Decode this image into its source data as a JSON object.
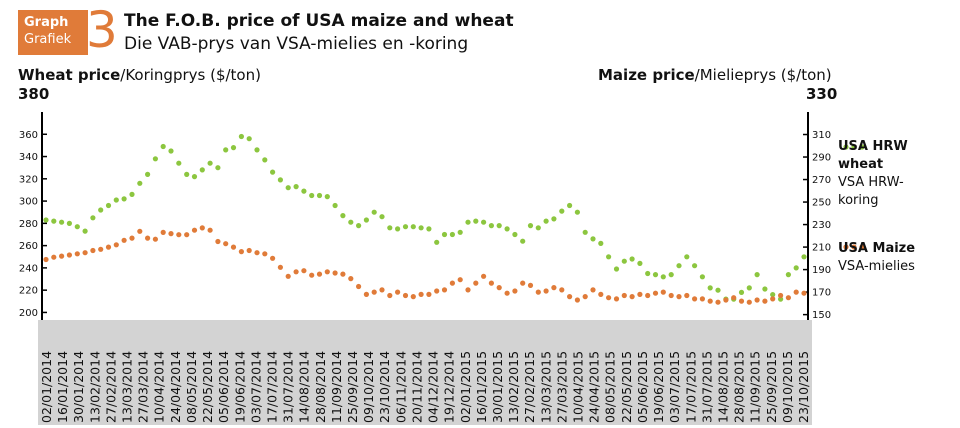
{
  "header": {
    "badge_line1": "Graph",
    "badge_line2": "Grafiek",
    "number": "3",
    "title_en": "The F.O.B. price of USA maize and wheat",
    "title_af": "Die VAB-prys van VSA-mielies en -koring"
  },
  "left_axis": {
    "label_bold": "Wheat price",
    "label_rest": "/Koringprys ($/ton)",
    "top_value": "380"
  },
  "right_axis": {
    "label_bold": "Maize price",
    "label_rest": "/Mielieprys ($/ton)",
    "top_value": "330"
  },
  "legend": {
    "wheat_line1": "USA HRW",
    "wheat_line2": "wheat",
    "wheat_af1": "VSA HRW-",
    "wheat_af2": "koring",
    "maize_line1": "USA Maize",
    "maize_af": "VSA-mielies"
  },
  "colors": {
    "wheat": "#8cc63f",
    "maize": "#e07b39",
    "accent": "#e07b39",
    "date_band": "#d3d3d3"
  },
  "chart_data": {
    "type": "scatter",
    "left_ylim": [
      195,
      380
    ],
    "left_ticks": [
      200,
      220,
      240,
      260,
      280,
      300,
      320,
      340,
      360
    ],
    "right_ylim": [
      147,
      330
    ],
    "right_ticks": [
      150,
      170,
      190,
      210,
      230,
      250,
      270,
      290,
      310
    ],
    "date_labels": [
      "02/01/2014",
      "16/01/2014",
      "30/01/2014",
      "13/02/2014",
      "27/02/2014",
      "13/03/2014",
      "27/03/2014",
      "10/04/2014",
      "24/04/2014",
      "08/05/2014",
      "22/05/2014",
      "05/06/2014",
      "19/06/2014",
      "03/07/2014",
      "17/07/2014",
      "31/07/2014",
      "14/08/2014",
      "28/08/2014",
      "11/09/2014",
      "25/09/2014",
      "09/10/2014",
      "23/10/2014",
      "06/11/2014",
      "20/11/2014",
      "04/12/2014",
      "19/12/2014",
      "02/01/2015",
      "16/01/2015",
      "30/01/2015",
      "13/02/2015",
      "27/02/2015",
      "13/03/2015",
      "27/03/2015",
      "10/04/2015",
      "24/04/2015",
      "08/05/2015",
      "22/05/2015",
      "05/06/2015",
      "19/06/2015",
      "03/07/2015",
      "17/07/2015",
      "31/07/2015",
      "14/08/2015",
      "28/08/2015",
      "11/09/2015",
      "25/09/2015",
      "09/10/2015",
      "23/10/2015"
    ],
    "series": [
      {
        "name": "USA HRW wheat",
        "axis": "left",
        "x_index": [
          0,
          1,
          2,
          3,
          4,
          5,
          6,
          7,
          8,
          9,
          10,
          11,
          12,
          13,
          14,
          15,
          16,
          17,
          18,
          19,
          20,
          21,
          22,
          23,
          24,
          25,
          26,
          27,
          28,
          29,
          30,
          31,
          32,
          33,
          34,
          35,
          36,
          37,
          38,
          39,
          40,
          41,
          42,
          43,
          44,
          45,
          46,
          47,
          48,
          49,
          50,
          51,
          52,
          53,
          54,
          55,
          56,
          57,
          58,
          59,
          60,
          61,
          62,
          63,
          64,
          65,
          66,
          67,
          68,
          69,
          70,
          71,
          72,
          73,
          74,
          75,
          76,
          77,
          78,
          79,
          80,
          81,
          82,
          83,
          84,
          85,
          86,
          87,
          88,
          89,
          90,
          91,
          92,
          93,
          94,
          95,
          96,
          97
        ],
        "values": [
          283,
          282,
          281,
          280,
          277,
          273,
          285,
          292,
          296,
          301,
          302,
          306,
          316,
          324,
          338,
          349,
          345,
          334,
          324,
          322,
          328,
          334,
          330,
          346,
          348,
          358,
          356,
          346,
          337,
          326,
          319,
          312,
          313,
          309,
          305,
          305,
          304,
          296,
          287,
          281,
          278,
          283,
          290,
          286,
          276,
          275,
          277,
          277,
          276,
          275,
          263,
          270,
          270,
          272,
          281,
          282,
          281,
          278,
          278,
          275,
          270,
          264,
          278,
          276,
          282,
          284,
          291,
          296,
          290,
          272,
          266,
          262,
          250,
          239,
          246,
          248,
          244,
          235,
          234,
          232,
          234,
          242,
          250,
          242,
          232,
          222,
          220,
          212,
          212,
          218,
          222,
          234,
          221,
          216,
          212,
          234,
          240,
          250
        ]
      },
      {
        "name": "USA Maize",
        "axis": "right",
        "x_index": [
          0,
          1,
          2,
          3,
          4,
          5,
          6,
          7,
          8,
          9,
          10,
          11,
          12,
          13,
          14,
          15,
          16,
          17,
          18,
          19,
          20,
          21,
          22,
          23,
          24,
          25,
          26,
          27,
          28,
          29,
          30,
          31,
          32,
          33,
          34,
          35,
          36,
          37,
          38,
          39,
          40,
          41,
          42,
          43,
          44,
          45,
          46,
          47,
          48,
          49,
          50,
          51,
          52,
          53,
          54,
          55,
          56,
          57,
          58,
          59,
          60,
          61,
          62,
          63,
          64,
          65,
          66,
          67,
          68,
          69,
          70,
          71,
          72,
          73,
          74,
          75,
          76,
          77,
          78,
          79,
          80,
          81,
          82,
          83,
          84,
          85,
          86,
          87,
          88,
          89,
          90,
          91,
          92,
          93,
          94,
          95,
          96,
          97
        ],
        "values": [
          199,
          201,
          202,
          203,
          204,
          205,
          207,
          208,
          210,
          212,
          216,
          218,
          224,
          218,
          217,
          223,
          222,
          221,
          221,
          225,
          227,
          225,
          215,
          213,
          210,
          206,
          207,
          205,
          204,
          200,
          192,
          184,
          188,
          189,
          185,
          186,
          188,
          187,
          186,
          182,
          175,
          168,
          170,
          172,
          167,
          170,
          167,
          166,
          168,
          168,
          171,
          172,
          178,
          181,
          172,
          178,
          184,
          178,
          174,
          169,
          171,
          178,
          176,
          170,
          171,
          174,
          172,
          166,
          163,
          166,
          172,
          168,
          165,
          164,
          167,
          166,
          168,
          167,
          169,
          170,
          167,
          166,
          167,
          164,
          164,
          162,
          161,
          163,
          165,
          162,
          161,
          163,
          162,
          164,
          167,
          165,
          170,
          169
        ]
      }
    ],
    "legend_position": "right",
    "grid": false
  }
}
